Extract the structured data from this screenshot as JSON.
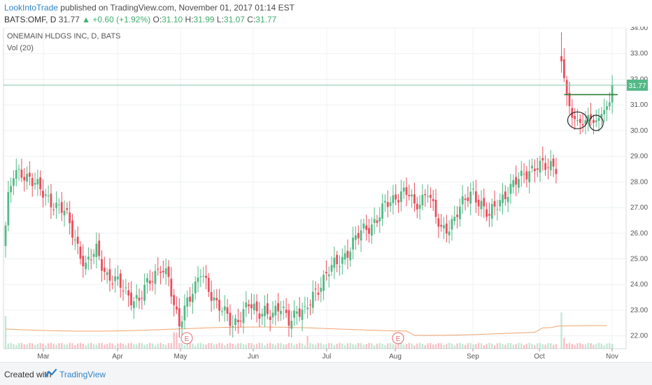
{
  "header": {
    "author": "LookIntoTrade",
    "published_text": "published on TradingView.com, November 01, 2017 01:14 EST",
    "symbol": "BATS:OMF, D",
    "last": "31.77",
    "change": "+0.60 (+1.92%)",
    "o_label": "O:",
    "o_value": "31.10",
    "h_label": "H:",
    "h_value": "31.99",
    "l_label": "L:",
    "l_value": "31.07",
    "c_label": "C:",
    "c_value": "31.77"
  },
  "legend": {
    "title": "ONEMAIN HLDGS INC, D, BATS",
    "volume_label": "Vol (20)"
  },
  "footer": {
    "created_with": "Created with",
    "brand": "TradingView"
  },
  "colors": {
    "up": "#53b987",
    "down": "#eb4d5c",
    "last_price_line": "#7fc8a5",
    "resistance": "#2e7d32",
    "volume_ma": "#f0a36c",
    "grid": "#eef0f3",
    "last_label_bg": "#53b987"
  },
  "chart_data": {
    "type": "candlestick",
    "title": "ONEMAIN HLDGS INC, D, BATS",
    "y_ticks": [
      "34.00",
      "33.00",
      "32.00",
      "31.00",
      "30.00",
      "29.00",
      "28.00",
      "27.00",
      "26.00",
      "25.00",
      "24.00",
      "23.00",
      "22.00"
    ],
    "ylim": [
      21.5,
      34.0
    ],
    "x_ticks": [
      "Mar",
      "Apr",
      "May",
      "Jun",
      "Jul",
      "Aug",
      "Sep",
      "Oct",
      "Nov"
    ],
    "last_price_label": "31.77",
    "last_price": 31.77,
    "resistance_level": 31.4,
    "earnings_markers": [
      {
        "label": "E",
        "date": "May"
      },
      {
        "label": "E",
        "date": "Aug"
      }
    ],
    "annotations": [
      "circle around late-October low",
      "circle around second late-October low",
      "horizontal resistance line at ~31.4"
    ],
    "series_name": "OMF",
    "anchors": [
      [
        0,
        26.3
      ],
      [
        1,
        27.3
      ],
      [
        3,
        28.2
      ],
      [
        6,
        28.4
      ],
      [
        9,
        28.2
      ],
      [
        13,
        27.6
      ],
      [
        18,
        27.2
      ],
      [
        22,
        26.8
      ],
      [
        26,
        25.8
      ],
      [
        30,
        24.7
      ],
      [
        34,
        25.3
      ],
      [
        38,
        24.4
      ],
      [
        42,
        24.0
      ],
      [
        46,
        23.6
      ],
      [
        50,
        23.4
      ],
      [
        54,
        24.1
      ],
      [
        58,
        24.8
      ],
      [
        61,
        24.2
      ],
      [
        63,
        23.0
      ],
      [
        65,
        22.5
      ],
      [
        68,
        23.5
      ],
      [
        71,
        23.8
      ],
      [
        73,
        24.4
      ],
      [
        76,
        23.9
      ],
      [
        79,
        23.3
      ],
      [
        82,
        22.8
      ],
      [
        85,
        22.4
      ],
      [
        88,
        22.9
      ],
      [
        91,
        23.2
      ],
      [
        94,
        22.8
      ],
      [
        97,
        23.1
      ],
      [
        100,
        22.8
      ],
      [
        103,
        23.0
      ],
      [
        106,
        22.7
      ],
      [
        109,
        23.0
      ],
      [
        112,
        22.8
      ],
      [
        115,
        23.6
      ],
      [
        118,
        24.1
      ],
      [
        121,
        24.5
      ],
      [
        124,
        24.8
      ],
      [
        127,
        25.2
      ],
      [
        130,
        25.6
      ],
      [
        133,
        26.0
      ],
      [
        136,
        26.3
      ],
      [
        139,
        26.6
      ],
      [
        142,
        27.0
      ],
      [
        145,
        27.3
      ],
      [
        148,
        27.7
      ],
      [
        151,
        27.5
      ],
      [
        153,
        26.9
      ],
      [
        156,
        27.4
      ],
      [
        158,
        27.8
      ],
      [
        161,
        26.6
      ],
      [
        163,
        26.0
      ],
      [
        166,
        26.3
      ],
      [
        169,
        26.9
      ],
      [
        172,
        27.2
      ],
      [
        175,
        27.6
      ],
      [
        178,
        27.2
      ],
      [
        181,
        26.6
      ],
      [
        184,
        27.1
      ],
      [
        187,
        27.6
      ],
      [
        190,
        27.9
      ],
      [
        193,
        28.1
      ],
      [
        196,
        28.5
      ],
      [
        199,
        28.7
      ],
      [
        202,
        28.5
      ],
      [
        205,
        28.6
      ],
      [
        207,
        28.7
      ],
      [
        208,
        32.7
      ],
      [
        210,
        31.4
      ],
      [
        212,
        30.5
      ],
      [
        214,
        30.4
      ],
      [
        216,
        30.2
      ],
      [
        218,
        30.6
      ],
      [
        220,
        30.3
      ],
      [
        222,
        30.5
      ],
      [
        224,
        30.8
      ],
      [
        226,
        31.1
      ],
      [
        227,
        31.77
      ]
    ],
    "volume_profile": "low baseline ~0.15-0.35 with spikes near late Feb, May, late Jun, and early Oct"
  }
}
